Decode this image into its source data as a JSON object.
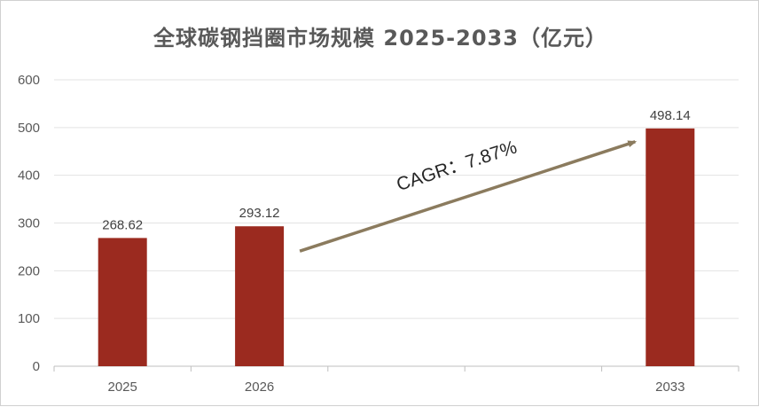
{
  "chart_data": {
    "type": "bar",
    "title": "全球碳钢挡圈市场规模 2025-2033（亿元）",
    "categories": [
      "2025",
      "2026",
      "",
      "",
      "2033"
    ],
    "values": [
      268.62,
      293.12,
      null,
      null,
      498.14
    ],
    "data_labels": [
      "268.62",
      "293.12",
      "",
      "",
      "498.14"
    ],
    "ylim": [
      0,
      600
    ],
    "yticks": [
      0,
      100,
      200,
      300,
      400,
      500,
      600
    ],
    "xlabel": "",
    "ylabel": "",
    "grid": true,
    "bar_color": "#9B2A1F",
    "annotation": {
      "text": "CAGR：7.87%",
      "from_category_index": 1,
      "to_category_index": 4,
      "arrow_color": "#8B7B5E"
    }
  }
}
